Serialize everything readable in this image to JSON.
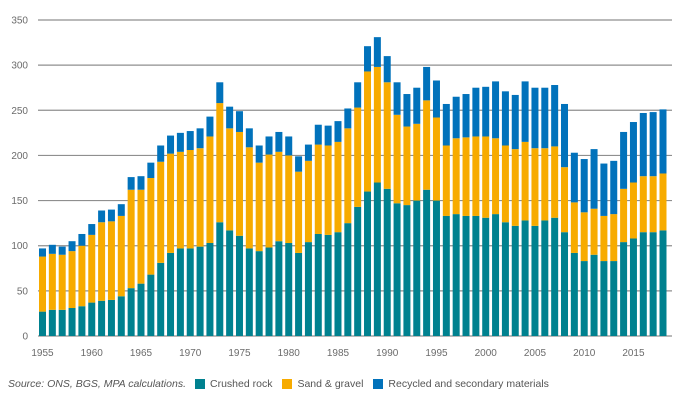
{
  "chart_data": {
    "type": "bar",
    "stacked": true,
    "title": "",
    "xlabel": "",
    "ylabel": "",
    "ylim": [
      0,
      350
    ],
    "yticks": [
      0,
      50,
      100,
      150,
      200,
      250,
      300,
      350
    ],
    "xtick_labels": [
      "1955",
      "1960",
      "1965",
      "1970",
      "1975",
      "1980",
      "1985",
      "1990",
      "1995",
      "2000",
      "2005",
      "2010",
      "2015"
    ],
    "grid": true,
    "legend_position": "bottom",
    "categories": [
      "1955",
      "1956",
      "1957",
      "1958",
      "1959",
      "1960",
      "1961",
      "1962",
      "1963",
      "1964",
      "1965",
      "1966",
      "1967",
      "1968",
      "1969",
      "1970",
      "1971",
      "1972",
      "1973",
      "1974",
      "1975",
      "1976",
      "1977",
      "1978",
      "1979",
      "1980",
      "1981",
      "1982",
      "1983",
      "1984",
      "1985",
      "1986",
      "1987",
      "1988",
      "1989",
      "1990",
      "1991",
      "1992",
      "1993",
      "1994",
      "1995",
      "1996",
      "1997",
      "1998",
      "1999",
      "2000",
      "2001",
      "2002",
      "2003",
      "2004",
      "2005",
      "2006",
      "2007",
      "2008",
      "2009",
      "2010",
      "2011",
      "2012",
      "2013",
      "2014",
      "2015",
      "2016",
      "2017",
      "2018"
    ],
    "series": [
      {
        "name": "Crushed rock",
        "color": "#00818f",
        "values": [
          27,
          29,
          29,
          31,
          33,
          37,
          39,
          40,
          44,
          53,
          58,
          68,
          81,
          92,
          97,
          97,
          99,
          103,
          126,
          117,
          111,
          97,
          94,
          98,
          105,
          103,
          92,
          104,
          113,
          112,
          115,
          125,
          143,
          160,
          170,
          163,
          147,
          145,
          150,
          162,
          150,
          133,
          135,
          133,
          133,
          131,
          135,
          126,
          122,
          128,
          122,
          128,
          131,
          115,
          92,
          83,
          90,
          83,
          83,
          104,
          108,
          115,
          115,
          117
        ]
      },
      {
        "name": "Sand & gravel",
        "color": "#f7ab00",
        "values": [
          61,
          62,
          61,
          63,
          67,
          75,
          87,
          87,
          89,
          109,
          104,
          107,
          112,
          110,
          107,
          109,
          109,
          118,
          132,
          113,
          115,
          112,
          98,
          103,
          99,
          97,
          90,
          90,
          99,
          99,
          100,
          105,
          110,
          133,
          128,
          118,
          98,
          87,
          85,
          99,
          92,
          78,
          84,
          87,
          88,
          90,
          84,
          85,
          85,
          87,
          86,
          80,
          79,
          72,
          56,
          54,
          51,
          50,
          52,
          59,
          62,
          62,
          62,
          63
        ]
      },
      {
        "name": "Recycled and secondary materials",
        "color": "#0172bb",
        "values": [
          9,
          10,
          9,
          11,
          13,
          12,
          13,
          13,
          13,
          14,
          15,
          17,
          18,
          20,
          21,
          21,
          22,
          22,
          23,
          24,
          23,
          21,
          19,
          20,
          22,
          21,
          17,
          18,
          22,
          22,
          23,
          22,
          28,
          28,
          33,
          29,
          36,
          36,
          40,
          37,
          41,
          46,
          46,
          48,
          54,
          55,
          63,
          60,
          60,
          67,
          67,
          67,
          68,
          70,
          55,
          59,
          66,
          58,
          59,
          63,
          67,
          70,
          71,
          71
        ]
      }
    ]
  },
  "footer": {
    "source": "Source: ONS, BGS, MPA calculations.",
    "legend": [
      {
        "label": "Crushed rock",
        "color": "#00818f"
      },
      {
        "label": "Sand & gravel",
        "color": "#f7ab00"
      },
      {
        "label": "Recycled and secondary materials",
        "color": "#0172bb"
      }
    ]
  }
}
